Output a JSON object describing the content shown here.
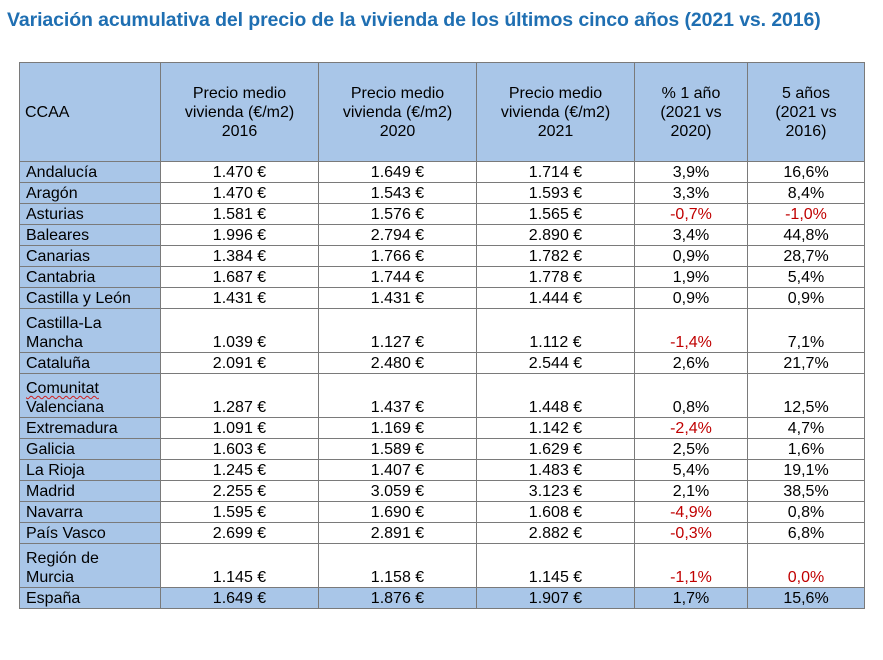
{
  "title": "Variación acumulativa del precio de la vivienda de los últimos cinco años (2021 vs. 2016)",
  "colors": {
    "title": "#1f6fb2",
    "header_fill": "#a9c6e8",
    "negative": "#c00000"
  },
  "columns": [
    "CCAA",
    "Precio medio\nvivienda (€/m2)\n2016",
    "Precio medio\nvivienda (€/m2)\n2020",
    "Precio medio\nvivienda (€/m2)\n2021",
    "% 1 año\n(2021 vs\n2020)",
    "5 años\n(2021 vs\n2016)"
  ],
  "rows": [
    {
      "ccaa": "Andalucía",
      "p2016": "1.470 €",
      "p2020": "1.649 €",
      "p2021": "1.714 €",
      "var1": "3,9%",
      "var5": "16,6%"
    },
    {
      "ccaa": "Aragón",
      "p2016": "1.470 €",
      "p2020": "1.543 €",
      "p2021": "1.593 €",
      "var1": "3,3%",
      "var5": "8,4%"
    },
    {
      "ccaa": "Asturias",
      "p2016": "1.581 €",
      "p2020": "1.576 €",
      "p2021": "1.565 €",
      "var1": "-0,7%",
      "var5": "-1,0%"
    },
    {
      "ccaa": "Baleares",
      "p2016": "1.996 €",
      "p2020": "2.794 €",
      "p2021": "2.890 €",
      "var1": "3,4%",
      "var5": "44,8%"
    },
    {
      "ccaa": "Canarias",
      "p2016": "1.384 €",
      "p2020": "1.766 €",
      "p2021": "1.782 €",
      "var1": "0,9%",
      "var5": "28,7%"
    },
    {
      "ccaa": "Cantabria",
      "p2016": "1.687 €",
      "p2020": "1.744 €",
      "p2021": "1.778 €",
      "var1": "1,9%",
      "var5": "5,4%"
    },
    {
      "ccaa": "Castilla y León",
      "p2016": "1.431 €",
      "p2020": "1.431 €",
      "p2021": "1.444 €",
      "var1": "0,9%",
      "var5": "0,9%"
    },
    {
      "ccaa": "Castilla-La\nMancha",
      "p2016": "1.039 €",
      "p2020": "1.127 €",
      "p2021": "1.112 €",
      "var1": "-1,4%",
      "var5": "7,1%"
    },
    {
      "ccaa": "Cataluña",
      "p2016": "2.091 €",
      "p2020": "2.480 €",
      "p2021": "2.544 €",
      "var1": "2,6%",
      "var5": "21,7%"
    },
    {
      "ccaa_line1": "Comunitat",
      "ccaa_line2": "Valenciana",
      "p2016": "1.287 €",
      "p2020": "1.437 €",
      "p2021": "1.448 €",
      "var1": "0,8%",
      "var5": "12,5%"
    },
    {
      "ccaa": "Extremadura",
      "p2016": "1.091 €",
      "p2020": "1.169 €",
      "p2021": "1.142 €",
      "var1": "-2,4%",
      "var5": "4,7%"
    },
    {
      "ccaa": "Galicia",
      "p2016": "1.603 €",
      "p2020": "1.589 €",
      "p2021": "1.629 €",
      "var1": "2,5%",
      "var5": "1,6%"
    },
    {
      "ccaa": "La Rioja",
      "p2016": "1.245 €",
      "p2020": "1.407 €",
      "p2021": "1.483 €",
      "var1": "5,4%",
      "var5": "19,1%"
    },
    {
      "ccaa": "Madrid",
      "p2016": "2.255 €",
      "p2020": "3.059 €",
      "p2021": "3.123 €",
      "var1": "2,1%",
      "var5": "38,5%"
    },
    {
      "ccaa": "Navarra",
      "p2016": "1.595 €",
      "p2020": "1.690 €",
      "p2021": "1.608 €",
      "var1": "-4,9%",
      "var5": "0,8%"
    },
    {
      "ccaa": "País Vasco",
      "p2016": "2.699 €",
      "p2020": "2.891 €",
      "p2021": "2.882 €",
      "var1": "-0,3%",
      "var5": "6,8%"
    },
    {
      "ccaa": "Región de\nMurcia",
      "p2016": "1.145 €",
      "p2020": "1.158 €",
      "p2021": "1.145 €",
      "var1": "-1,1%",
      "var5": "0,0%"
    }
  ],
  "total": {
    "ccaa": "España",
    "p2016": "1.649 €",
    "p2020": "1.876 €",
    "p2021": "1.907 €",
    "var1": "1,7%",
    "var5": "15,6%"
  }
}
